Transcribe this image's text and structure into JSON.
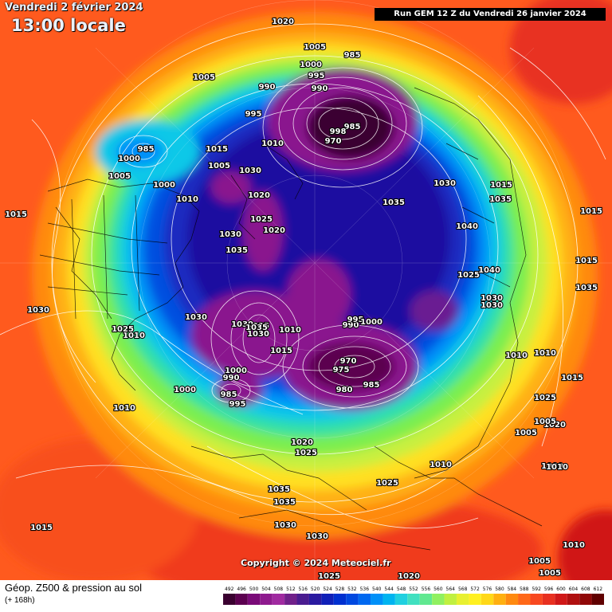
{
  "header": {
    "date": "Vendredi 2 février 2024",
    "time": "13:00 locale",
    "run": "Run GEM 12 Z du Vendredi 26 janvier 2024"
  },
  "copyright": "Copyright © 2024 Meteociel.fr",
  "legend": {
    "title": "Géop. Z500 & pression au sol",
    "subtitle": "(+ 168h)",
    "scale_labels": [
      "492",
      "496",
      "500",
      "504",
      "508",
      "512",
      "516",
      "520",
      "524",
      "528",
      "532",
      "536",
      "540",
      "544",
      "548",
      "552",
      "556",
      "560",
      "564",
      "568",
      "572",
      "576",
      "580",
      "584",
      "588",
      "592",
      "596",
      "600",
      "604",
      "608",
      "612"
    ],
    "scale_colors": [
      "#3a0030",
      "#5c0050",
      "#7a0a78",
      "#8e1a8e",
      "#a02aa0",
      "#70208a",
      "#4a1c90",
      "#2a1aa0",
      "#1020b8",
      "#0030d0",
      "#0048e0",
      "#0068f0",
      "#0090f8",
      "#00b4f0",
      "#20d0e0",
      "#40e0c0",
      "#60e890",
      "#90f060",
      "#c0f040",
      "#e8f030",
      "#fff020",
      "#ffd818",
      "#ffb010",
      "#ff8a10",
      "#ff6818",
      "#f84820",
      "#e83020",
      "#d01818",
      "#b01010",
      "#900808",
      "#600000"
    ]
  },
  "map": {
    "colors": {
      "ocean_warm": "#ff5a1e",
      "orange": "#ff8a10",
      "yellow": "#ffe020",
      "green": "#7aee50",
      "cyan": "#1ee0e0",
      "blue": "#0a40d8",
      "deep_blue": "#1a10a0",
      "purple": "#8a188e",
      "black": "#050005"
    },
    "pressure_labels": [
      "1020",
      "1005",
      "985",
      "1000",
      "995",
      "990",
      "1005",
      "990",
      "985",
      "998",
      "970",
      "995",
      "1010",
      "1030",
      "985",
      "1000",
      "1015",
      "1005",
      "1005",
      "1000",
      "1010",
      "1020",
      "1035",
      "1035",
      "1030",
      "1015",
      "1025",
      "1020",
      "1030",
      "1035",
      "1040",
      "1025",
      "1040",
      "1030",
      "1030",
      "1015",
      "1015",
      "1035",
      "1010",
      "1010",
      "1015",
      "1025",
      "1020",
      "1030",
      "1030",
      "1010",
      "1035",
      "1010",
      "1015",
      "990",
      "995",
      "1000",
      "970",
      "975",
      "980",
      "985",
      "1000",
      "990",
      "985",
      "995",
      "1000",
      "1025",
      "1030",
      "1010",
      "1020",
      "1025",
      "1035",
      "1035",
      "1030",
      "1030",
      "1015",
      "1025",
      "1025",
      "1020",
      "1010",
      "1015",
      "1005",
      "1005",
      "1000",
      "1010",
      "1005",
      "1005",
      "1010",
      "1035",
      "1030"
    ]
  }
}
